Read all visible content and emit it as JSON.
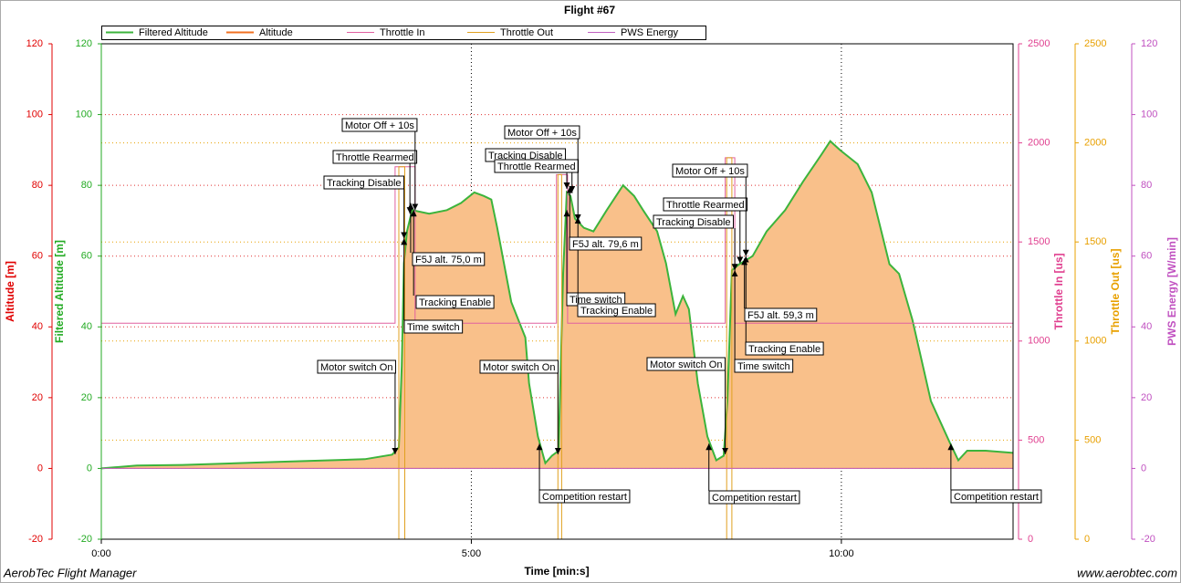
{
  "chart_data": {
    "type": "line",
    "title": "Flight #67",
    "xlabel": "Time [min:s]",
    "footer_left": "AerobTec Flight Manager",
    "footer_right": "www.aerobtec.com",
    "xlim": [
      0,
      12.32
    ],
    "xticks": [
      {
        "value": 0,
        "label": "0:00"
      },
      {
        "value": 5,
        "label": "5:00"
      },
      {
        "value": 10,
        "label": "10:00"
      }
    ],
    "axes": [
      {
        "name": "Altitude [m]",
        "color": "#e00000",
        "lim": [
          -20,
          120
        ],
        "ticks": [
          -20,
          0,
          20,
          40,
          60,
          80,
          100,
          120
        ]
      },
      {
        "name": "Filtered Altitude [m]",
        "color": "#22aa22",
        "lim": [
          -20,
          120
        ],
        "ticks": [
          -20,
          0,
          20,
          40,
          60,
          80,
          100,
          120
        ]
      },
      {
        "name": "Throttle In [us]",
        "color": "#e04090",
        "lim": [
          0,
          2500
        ],
        "ticks": [
          0,
          500,
          1000,
          1500,
          2000,
          2500
        ]
      },
      {
        "name": "Throttle Out [us]",
        "color": "#e8a000",
        "lim": [
          0,
          2500
        ],
        "ticks": [
          0,
          500,
          1000,
          1500,
          2000,
          2500
        ]
      },
      {
        "name": "PWS Energy [W/min]",
        "color": "#c050c0",
        "lim": [
          -20,
          120
        ],
        "ticks": [
          -20,
          0,
          20,
          40,
          60,
          80,
          100,
          120
        ]
      }
    ],
    "series": [
      {
        "name": "Filtered Altitude",
        "color": "#3cb43c",
        "axis": 1,
        "x": [
          0,
          0.48,
          1.1,
          2.33,
          3.56,
          3.93,
          4.02,
          4.06,
          4.09,
          4.13,
          4.2,
          4.43,
          4.67,
          4.86,
          5.04,
          5.17,
          5.27,
          5.35,
          5.54,
          5.73,
          5.78,
          5.9,
          6.0,
          6.09,
          6.18,
          6.24,
          6.29,
          6.34,
          6.4,
          6.52,
          6.65,
          6.83,
          7.05,
          7.2,
          7.32,
          7.51,
          7.63,
          7.76,
          7.86,
          7.94,
          8.06,
          8.19,
          8.31,
          8.41,
          8.46,
          8.52,
          8.62,
          8.8,
          8.99,
          9.24,
          9.48,
          9.73,
          9.85,
          9.98,
          10.22,
          10.41,
          10.65,
          10.78,
          10.96,
          11.21,
          11.46,
          11.58,
          11.7,
          11.95,
          12.32
        ],
        "values": [
          0,
          0.8,
          1,
          1.8,
          2.6,
          3.9,
          6,
          29,
          58,
          67,
          73,
          72,
          73,
          75,
          78,
          77,
          76,
          68,
          47,
          37,
          24,
          9,
          1.5,
          3.6,
          5,
          55,
          78,
          77,
          70.6,
          68,
          67,
          73,
          80,
          77,
          73,
          67,
          58,
          43.6,
          48.7,
          45,
          24,
          9,
          2.3,
          3.6,
          19,
          56,
          57.7,
          60,
          67,
          73,
          81,
          88.7,
          92.5,
          90,
          86,
          78,
          57.7,
          55,
          42,
          19,
          7.5,
          2.3,
          5,
          5,
          4.4
        ]
      },
      {
        "name": "Altitude",
        "color": "#f9c08a",
        "axis": 0,
        "x": [
          0,
          0.48,
          1.1,
          2.33,
          3.56,
          3.93,
          4.02,
          4.06,
          4.09,
          4.13,
          4.2,
          4.43,
          4.67,
          4.86,
          5.04,
          5.17,
          5.27,
          5.35,
          5.54,
          5.73,
          5.78,
          5.9,
          6.0,
          6.09,
          6.18,
          6.24,
          6.29,
          6.34,
          6.4,
          6.52,
          6.65,
          6.83,
          7.05,
          7.2,
          7.32,
          7.51,
          7.63,
          7.76,
          7.86,
          7.94,
          8.06,
          8.19,
          8.31,
          8.41,
          8.46,
          8.52,
          8.62,
          8.8,
          8.99,
          9.24,
          9.48,
          9.73,
          9.85,
          9.98,
          10.22,
          10.41,
          10.65,
          10.78,
          10.96,
          11.21,
          11.46,
          11.58,
          11.7,
          11.95,
          12.32
        ],
        "values": [
          0,
          0.8,
          1,
          1.8,
          2.6,
          3.9,
          6,
          29,
          58,
          67,
          73,
          72,
          73,
          75,
          78,
          77,
          76,
          68,
          47,
          37,
          24,
          9,
          1.5,
          3.6,
          5,
          55,
          78,
          77,
          70.6,
          68,
          67,
          73,
          80,
          77,
          73,
          67,
          58,
          43.6,
          48.7,
          45,
          24,
          9,
          2.3,
          3.6,
          19,
          56,
          57.7,
          60,
          67,
          73,
          81,
          88.7,
          92.5,
          90,
          86,
          78,
          57.7,
          55,
          42,
          19,
          7.5,
          2.3,
          5,
          5,
          4.4
        ]
      },
      {
        "name": "Throttle In",
        "color": "#e060a0",
        "axis": 2,
        "x": [
          0,
          3.97,
          3.97,
          4.24,
          4.24,
          6.15,
          6.15,
          6.3,
          6.3,
          8.43,
          8.43,
          8.56,
          8.56,
          12.32
        ],
        "values": [
          1090,
          1090,
          1880,
          1880,
          1090,
          1090,
          1840,
          1840,
          1090,
          1090,
          1925,
          1925,
          1090,
          1090
        ]
      },
      {
        "name": "Throttle Out",
        "color": "#e0a020",
        "axis": 3,
        "x": [
          0,
          4.02,
          4.02,
          4.1,
          4.1,
          6.17,
          6.17,
          6.22,
          6.22,
          8.45,
          8.45,
          8.52,
          8.52,
          12.32
        ],
        "values": [
          0,
          0,
          1880,
          1880,
          0,
          0,
          1840,
          1840,
          0,
          0,
          1925,
          1925,
          0,
          0
        ]
      },
      {
        "name": "PWS Energy",
        "color": "#c060c0",
        "axis": 4,
        "x": [
          0,
          12.32
        ],
        "values": [
          0,
          0
        ]
      }
    ],
    "annotations": [
      {
        "text": "Motor switch On",
        "x": 3.97,
        "y": 4
      },
      {
        "text": "Time switch",
        "x": 4.09,
        "y": 65
      },
      {
        "text": "Tracking Disable",
        "x": 4.09,
        "y": 65
      },
      {
        "text": "Throttle Rearmed",
        "x": 4.17,
        "y": 72
      },
      {
        "text": "Motor Off + 10s",
        "x": 4.24,
        "y": 73
      },
      {
        "text": "Tracking Enable",
        "x": 4.22,
        "y": 73
      },
      {
        "text": "F5J alt. 75,0 m",
        "x": 4.18,
        "y": 75.0
      },
      {
        "text": "Motor switch On",
        "x": 6.17,
        "y": 4
      },
      {
        "text": "Competition restart",
        "x": 5.92,
        "y": 7
      },
      {
        "text": "Time switch",
        "x": 6.29,
        "y": 73
      },
      {
        "text": "Tracking Disable",
        "x": 6.29,
        "y": 79
      },
      {
        "text": "Throttle Rearmed",
        "x": 6.36,
        "y": 78
      },
      {
        "text": "Motor Off + 10s",
        "x": 6.44,
        "y": 70
      },
      {
        "text": "Tracking Enable",
        "x": 6.44,
        "y": 71
      },
      {
        "text": "F5J alt. 79,6 m",
        "x": 6.33,
        "y": 79.6
      },
      {
        "text": "Motor switch On",
        "x": 8.43,
        "y": 4
      },
      {
        "text": "Competition restart",
        "x": 8.21,
        "y": 7
      },
      {
        "text": "Time switch",
        "x": 8.56,
        "y": 56
      },
      {
        "text": "Tracking Disable",
        "x": 8.56,
        "y": 56
      },
      {
        "text": "Throttle Rearmed",
        "x": 8.63,
        "y": 58
      },
      {
        "text": "Motor Off + 10s",
        "x": 8.71,
        "y": 60
      },
      {
        "text": "Tracking Enable",
        "x": 8.71,
        "y": 60
      },
      {
        "text": "F5J alt. 59,3 m",
        "x": 8.69,
        "y": 59.3
      },
      {
        "text": "Competition restart",
        "x": 11.48,
        "y": 7
      }
    ]
  }
}
